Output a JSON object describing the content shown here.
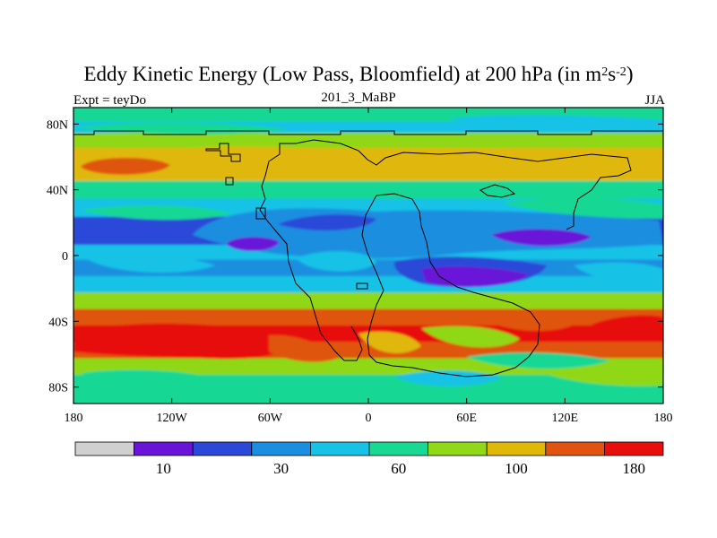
{
  "chart_data": {
    "type": "heatmap",
    "title_main": "Eddy Kinetic Energy (Low Pass, Bloomfield) at 200 hPa (in m",
    "title_units_sup1": "2",
    "title_units_mid": "s",
    "title_units_sup2": "-2",
    "title_close": ")",
    "left_label": "Expt = teyDo",
    "center_label": "201_3_MaBP",
    "right_label": "JJA",
    "xlim": [
      -180,
      180
    ],
    "ylim": [
      -90,
      90
    ],
    "x_ticks": [
      {
        "value": -180,
        "label": "180"
      },
      {
        "value": -120,
        "label": "120W"
      },
      {
        "value": -60,
        "label": "60W"
      },
      {
        "value": 0,
        "label": "0"
      },
      {
        "value": 60,
        "label": "60E"
      },
      {
        "value": 120,
        "label": "120E"
      },
      {
        "value": 180,
        "label": "180"
      }
    ],
    "y_ticks": [
      {
        "value": 80,
        "label": "80N"
      },
      {
        "value": 40,
        "label": "40N"
      },
      {
        "value": 0,
        "label": "0"
      },
      {
        "value": -40,
        "label": "40S"
      },
      {
        "value": -80,
        "label": "80S"
      }
    ],
    "colorbar": {
      "colors": [
        "#d0d0d0",
        "#6a14d8",
        "#2b48d8",
        "#1a8ee0",
        "#18c2e6",
        "#18d894",
        "#90d818",
        "#e0b808",
        "#e05410",
        "#e80e0e"
      ],
      "tick_labels": [
        {
          "index": 1.5,
          "label": "10"
        },
        {
          "index": 3.5,
          "label": "30"
        },
        {
          "index": 5.5,
          "label": "60"
        },
        {
          "index": 7.5,
          "label": "100"
        },
        {
          "index": 9.5,
          "label": "180"
        }
      ]
    },
    "field_levels": [
      {
        "lat": 90,
        "level": 5
      },
      {
        "lat": 84,
        "level": 5
      },
      {
        "lat": 78,
        "level": 4
      },
      {
        "lat": 70,
        "level": 6
      },
      {
        "lat": 60,
        "level": 7
      },
      {
        "lat": 50,
        "level": 7
      },
      {
        "lat": 40,
        "level": 5
      },
      {
        "lat": 28,
        "level": 4
      },
      {
        "lat": 18,
        "level": 2
      },
      {
        "lat": 10,
        "level": 2
      },
      {
        "lat": 2,
        "level": 4
      },
      {
        "lat": -8,
        "level": 3
      },
      {
        "lat": -18,
        "level": 4
      },
      {
        "lat": -28,
        "level": 6
      },
      {
        "lat": -38,
        "level": 8
      },
      {
        "lat": -48,
        "level": 9
      },
      {
        "lat": -58,
        "level": 8
      },
      {
        "lat": -68,
        "level": 6
      },
      {
        "lat": -78,
        "level": 5
      },
      {
        "lat": -90,
        "level": 5
      }
    ]
  }
}
